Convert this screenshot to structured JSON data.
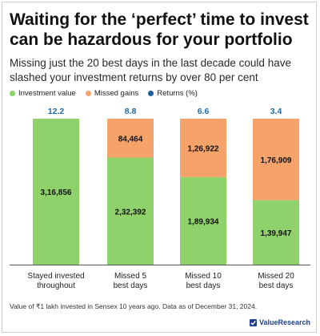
{
  "title": "Waiting for the ‘perfect’ time to invest can be hazardous for your portfolio",
  "subtitle": "Missing just the 20 best days in the last decade could have slashed your investment returns by over 80 per cent",
  "legend": [
    {
      "label": "Investment value",
      "color": "#8fd16a"
    },
    {
      "label": "Missed gains",
      "color": "#f5a36b"
    },
    {
      "label": "Returns (%)",
      "color": "#1f5fa0"
    }
  ],
  "footnote": "Value of ₹1 lakh invested in Sensex 10 years ago. Data as of December 31, 2024.",
  "brand": "ValueResearch",
  "chart_data": {
    "type": "bar",
    "stacked": true,
    "categories": [
      [
        "Stayed invested",
        "throughout"
      ],
      [
        "Missed 5",
        "best days"
      ],
      [
        "Missed 10",
        "best days"
      ],
      [
        "Missed 20",
        "best days"
      ]
    ],
    "series": [
      {
        "name": "Investment value",
        "color": "#8fd16a",
        "values": [
          316856,
          232392,
          189934,
          139947
        ],
        "labels": [
          "3,16,856",
          "2,32,392",
          "1,89,934",
          "1,39,947"
        ]
      },
      {
        "name": "Missed gains",
        "color": "#f5a36b",
        "values": [
          0,
          84464,
          126922,
          176909
        ],
        "labels": [
          "",
          "84,464",
          "1,26,922",
          "1,76,909"
        ]
      }
    ],
    "returns": {
      "name": "Returns (%)",
      "color": "#1f6aa8",
      "values": [
        "12.2",
        "8.8",
        "6.6",
        "3.4"
      ]
    },
    "ylim": [
      0,
      316856
    ],
    "grid": false,
    "legend_position": "top-left"
  }
}
